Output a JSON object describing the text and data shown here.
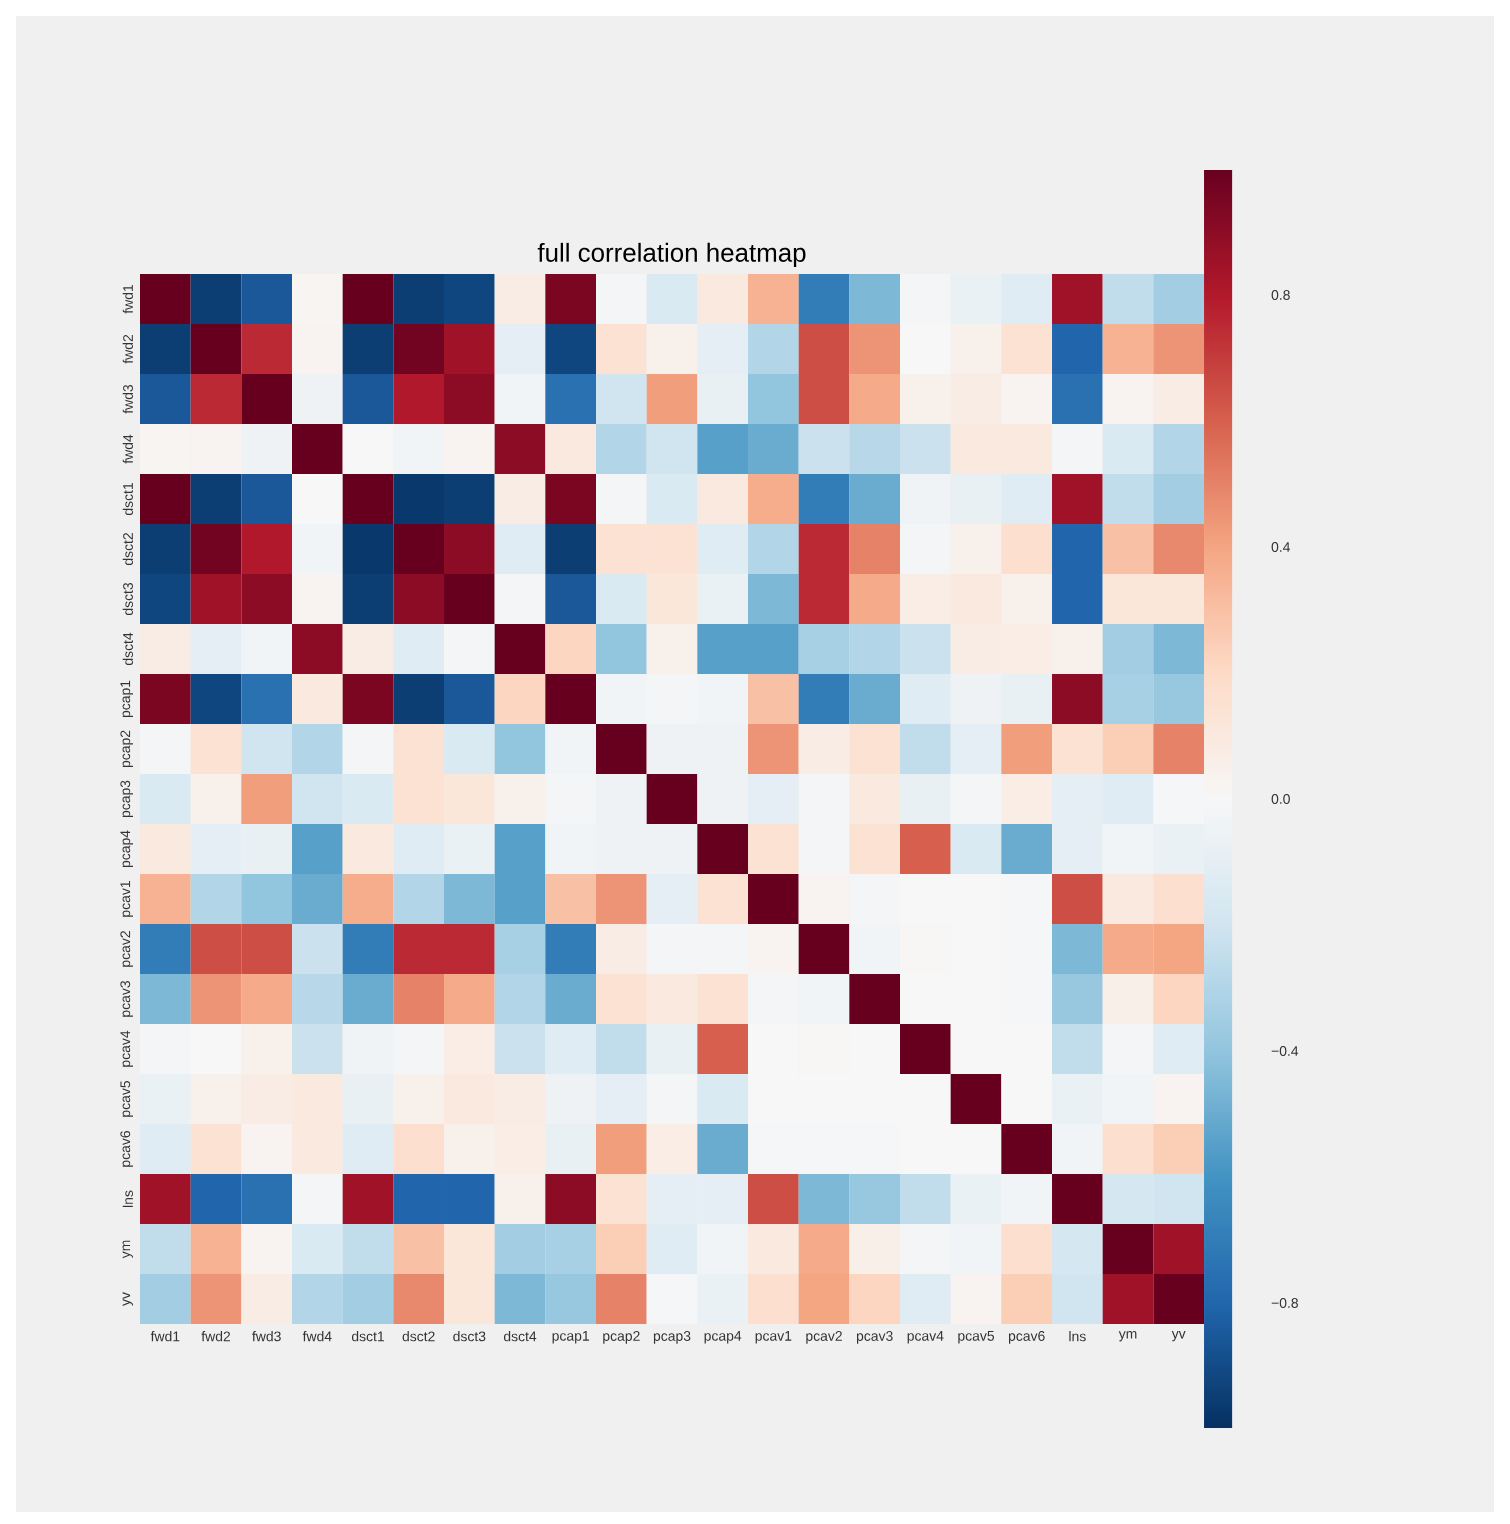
{
  "chart_data": {
    "type": "heatmap",
    "title": "full correlation heatmap",
    "categories": [
      "fwd1",
      "fwd2",
      "fwd3",
      "fwd4",
      "dsct1",
      "dsct2",
      "dsct3",
      "dsct4",
      "pcap1",
      "pcap2",
      "pcap3",
      "pcap4",
      "pcav1",
      "pcav2",
      "pcav3",
      "pcav4",
      "pcav5",
      "pcav6",
      "lns",
      "ym",
      "yv"
    ],
    "y_categories": [
      "fwd1",
      "fwd2",
      "fwd3",
      "fwd4",
      "dsct1",
      "dsct2",
      "dsct3",
      "dsct4",
      "pcap1",
      "pcap2",
      "pcap3",
      "pcap4",
      "pcav1",
      "pcav2",
      "pcav3",
      "pcav4",
      "pcav5",
      "pcav6",
      "lns",
      "ym",
      "yv"
    ],
    "cells": [
      [
        1,
        -0.95,
        -0.85,
        0.02,
        1,
        -0.95,
        -0.92,
        0.08,
        0.95,
        -0.02,
        -0.15,
        0.1,
        0.35,
        -0.7,
        -0.45,
        -0.02,
        -0.07,
        -0.12,
        0.85,
        -0.25,
        -0.35
      ],
      [
        -0.95,
        1,
        0.75,
        0.03,
        -0.95,
        0.97,
        0.85,
        -0.1,
        -0.92,
        0.15,
        0.05,
        -0.1,
        -0.3,
        0.65,
        0.45,
        0.0,
        0.05,
        0.15,
        -0.8,
        0.35,
        0.45
      ],
      [
        -0.85,
        0.75,
        1,
        -0.05,
        -0.85,
        0.8,
        0.9,
        -0.03,
        -0.75,
        -0.2,
        0.42,
        -0.08,
        -0.4,
        0.65,
        0.38,
        0.05,
        0.08,
        0.03,
        -0.75,
        0.03,
        0.08
      ],
      [
        0.02,
        0.03,
        -0.05,
        1,
        0.0,
        -0.03,
        0.03,
        0.9,
        0.1,
        -0.3,
        -0.2,
        -0.55,
        -0.5,
        -0.22,
        -0.28,
        -0.22,
        0.1,
        0.1,
        -0.02,
        -0.15,
        -0.3
      ],
      [
        1,
        -0.95,
        -0.85,
        0.0,
        1,
        -0.97,
        -0.95,
        0.08,
        0.95,
        -0.02,
        -0.15,
        0.1,
        0.37,
        -0.7,
        -0.5,
        -0.04,
        -0.08,
        -0.12,
        0.85,
        -0.25,
        -0.35
      ],
      [
        -0.95,
        0.97,
        0.8,
        -0.03,
        -0.97,
        1,
        0.9,
        -0.12,
        -0.95,
        0.15,
        0.15,
        -0.12,
        -0.3,
        0.75,
        0.5,
        -0.02,
        0.05,
        0.17,
        -0.8,
        0.3,
        0.48
      ],
      [
        -0.92,
        0.85,
        0.9,
        0.03,
        -0.95,
        0.9,
        1,
        -0.02,
        -0.85,
        -0.15,
        0.12,
        -0.07,
        -0.45,
        0.75,
        0.38,
        0.07,
        0.1,
        0.05,
        -0.8,
        0.12,
        0.12
      ],
      [
        0.08,
        -0.1,
        -0.03,
        0.9,
        0.08,
        -0.12,
        -0.02,
        1,
        0.22,
        -0.4,
        0.05,
        -0.55,
        -0.55,
        -0.33,
        -0.3,
        -0.22,
        0.08,
        0.07,
        0.05,
        -0.35,
        -0.45
      ],
      [
        0.95,
        -0.92,
        -0.75,
        0.1,
        0.95,
        -0.95,
        -0.85,
        0.22,
        1,
        -0.03,
        -0.02,
        -0.03,
        0.3,
        -0.7,
        -0.5,
        -0.12,
        -0.05,
        -0.08,
        0.9,
        -0.33,
        -0.38
      ],
      [
        -0.02,
        0.15,
        -0.2,
        -0.3,
        -0.02,
        0.15,
        -0.15,
        -0.4,
        -0.03,
        1,
        -0.05,
        -0.05,
        0.45,
        0.08,
        0.15,
        -0.25,
        -0.1,
        0.42,
        0.15,
        0.25,
        0.5
      ],
      [
        -0.15,
        0.05,
        0.42,
        -0.2,
        -0.15,
        0.15,
        0.12,
        0.05,
        -0.02,
        -0.05,
        1,
        -0.05,
        -0.1,
        -0.02,
        0.1,
        -0.08,
        -0.02,
        0.07,
        -0.1,
        -0.12,
        -0.01
      ],
      [
        0.1,
        -0.1,
        -0.08,
        -0.55,
        0.1,
        -0.12,
        -0.07,
        -0.55,
        -0.03,
        -0.05,
        -0.05,
        1,
        0.15,
        -0.02,
        0.15,
        0.6,
        -0.15,
        -0.5,
        -0.1,
        -0.03,
        -0.07
      ],
      [
        0.35,
        -0.3,
        -0.4,
        -0.5,
        0.37,
        -0.3,
        -0.45,
        -0.55,
        0.3,
        0.45,
        -0.1,
        0.15,
        1,
        0.03,
        -0.02,
        0.0,
        0.0,
        -0.01,
        0.65,
        0.1,
        0.17
      ],
      [
        -0.7,
        0.65,
        0.65,
        -0.22,
        -0.7,
        0.75,
        0.75,
        -0.33,
        -0.7,
        0.08,
        -0.02,
        -0.02,
        0.03,
        1,
        -0.03,
        0.01,
        0.0,
        -0.01,
        -0.45,
        0.38,
        0.4
      ],
      [
        -0.45,
        0.45,
        0.38,
        -0.28,
        -0.5,
        0.5,
        0.38,
        -0.3,
        -0.5,
        0.15,
        0.1,
        0.15,
        -0.02,
        -0.03,
        1,
        0.0,
        0.0,
        -0.01,
        -0.38,
        0.06,
        0.22
      ],
      [
        -0.02,
        0.0,
        0.05,
        -0.22,
        -0.04,
        -0.02,
        0.07,
        -0.22,
        -0.12,
        -0.25,
        -0.08,
        0.6,
        0.0,
        0.01,
        0.0,
        1,
        0.0,
        0.0,
        -0.25,
        -0.02,
        -0.12
      ],
      [
        -0.07,
        0.05,
        0.08,
        0.1,
        -0.08,
        0.05,
        0.1,
        0.08,
        -0.05,
        -0.1,
        -0.02,
        -0.15,
        0.0,
        0.0,
        0.0,
        0.0,
        1,
        0.0,
        -0.07,
        -0.03,
        0.03
      ],
      [
        -0.12,
        0.15,
        0.03,
        0.1,
        -0.12,
        0.17,
        0.05,
        0.07,
        -0.08,
        0.42,
        0.07,
        -0.5,
        -0.01,
        -0.01,
        -0.01,
        0.0,
        0.0,
        1,
        -0.03,
        0.17,
        0.25
      ],
      [
        0.85,
        -0.8,
        -0.75,
        -0.02,
        0.85,
        -0.8,
        -0.8,
        0.05,
        0.9,
        0.15,
        -0.1,
        -0.1,
        0.65,
        -0.45,
        -0.38,
        -0.25,
        -0.07,
        -0.03,
        1,
        -0.18,
        -0.2
      ],
      [
        -0.25,
        0.35,
        0.03,
        -0.15,
        -0.25,
        0.3,
        0.12,
        -0.35,
        -0.33,
        0.25,
        -0.12,
        -0.03,
        0.1,
        0.38,
        0.06,
        -0.02,
        -0.03,
        0.17,
        -0.18,
        1,
        0.85
      ],
      [
        -0.35,
        0.45,
        0.08,
        -0.3,
        -0.35,
        0.48,
        0.12,
        -0.45,
        -0.38,
        0.5,
        -0.01,
        -0.07,
        0.17,
        0.4,
        0.22,
        -0.12,
        0.03,
        0.25,
        -0.2,
        0.85,
        1
      ]
    ],
    "clim": [
      -1,
      1
    ],
    "cticks": [
      0.8,
      0.4,
      {
        "value": 0,
        "label": "0.0"
      },
      {
        "value": -0.4,
        "label": "−0.4"
      },
      {
        "value": -0.8,
        "label": "−0.8"
      }
    ]
  }
}
